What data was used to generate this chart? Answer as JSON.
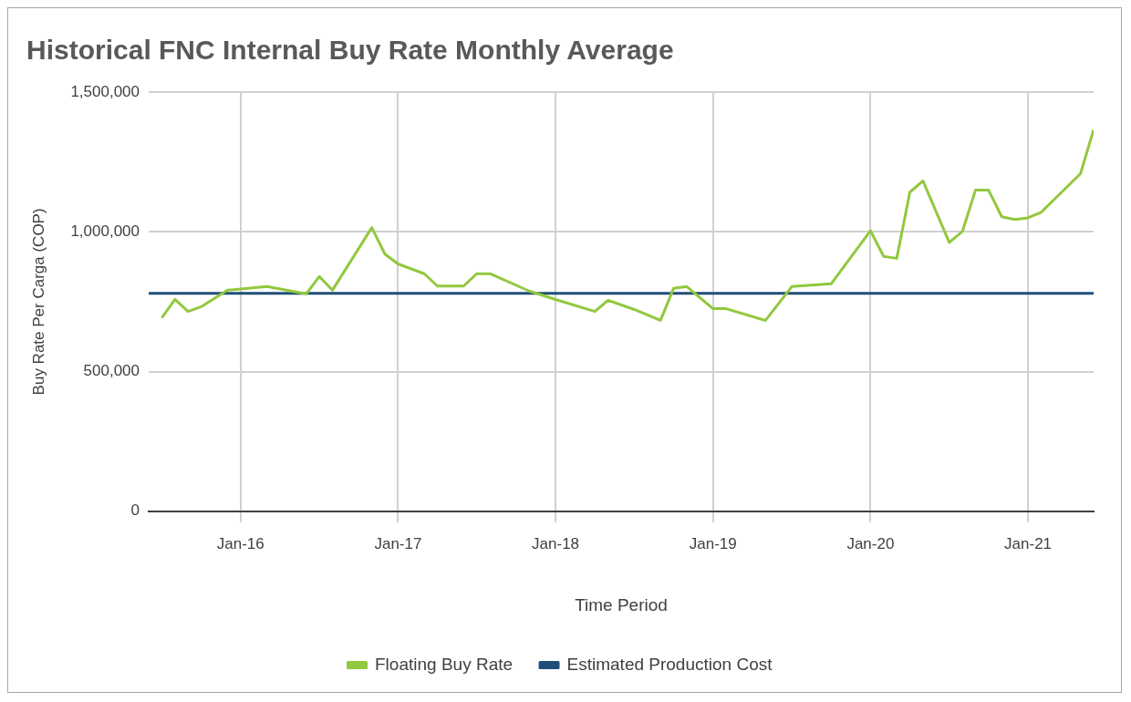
{
  "chart_data": {
    "type": "line",
    "title": "Historical FNC Internal Buy Rate Monthly Average",
    "xlabel": "Time Period",
    "ylabel": "Buy Rate Per Carga (COP)",
    "x": [
      "2015-07",
      "2015-08",
      "2015-09",
      "2015-10",
      "2015-12",
      "2016-03",
      "2016-06",
      "2016-07",
      "2016-08",
      "2016-11",
      "2016-12",
      "2017-01",
      "2017-03",
      "2017-04",
      "2017-06",
      "2017-07",
      "2017-08",
      "2017-11",
      "2018-01",
      "2018-04",
      "2018-05",
      "2018-07",
      "2018-09",
      "2018-10",
      "2018-11",
      "2019-01",
      "2019-02",
      "2019-05",
      "2019-07",
      "2019-10",
      "2020-01",
      "2020-02",
      "2020-03",
      "2020-04",
      "2020-05",
      "2020-07",
      "2020-08",
      "2020-09",
      "2020-10",
      "2020-11",
      "2020-12",
      "2021-01",
      "2021-02",
      "2021-03",
      "2021-05",
      "2021-06"
    ],
    "series": [
      {
        "name": "Floating Buy Rate",
        "color": "#92c83e",
        "values": [
          692000,
          758000,
          715000,
          732000,
          791000,
          804000,
          778000,
          840000,
          791000,
          1015000,
          920000,
          885000,
          850000,
          806000,
          806000,
          850000,
          850000,
          788000,
          758000,
          715000,
          755000,
          722000,
          683000,
          798000,
          804000,
          725000,
          725000,
          683000,
          804000,
          814000,
          1004000,
          912000,
          905000,
          1142000,
          1182000,
          962000,
          1001000,
          1149000,
          1149000,
          1054000,
          1044000,
          1050000,
          1070000,
          1116000,
          1208000,
          1365000
        ]
      },
      {
        "name": "Estimated Production Cost",
        "color": "#1f4e79",
        "x": [
          "2015-06",
          "2021-06"
        ],
        "values": [
          780000,
          780000
        ]
      }
    ],
    "xlim": [
      "2015-06",
      "2021-06"
    ],
    "xticks": [
      {
        "value": "2016-01",
        "label": "Jan-16"
      },
      {
        "value": "2017-01",
        "label": "Jan-17"
      },
      {
        "value": "2018-01",
        "label": "Jan-18"
      },
      {
        "value": "2019-01",
        "label": "Jan-19"
      },
      {
        "value": "2020-01",
        "label": "Jan-20"
      },
      {
        "value": "2021-01",
        "label": "Jan-21"
      }
    ],
    "ylim": [
      0,
      1500000
    ],
    "yticks": [
      0,
      {
        "value": 500000,
        "label": "500,000"
      },
      {
        "value": 1000000,
        "label": "1,000,000"
      },
      {
        "value": 1500000,
        "label": "1,500,000"
      }
    ],
    "grid": true,
    "legend": "bottom",
    "marker": "none",
    "line_style": "solid"
  }
}
